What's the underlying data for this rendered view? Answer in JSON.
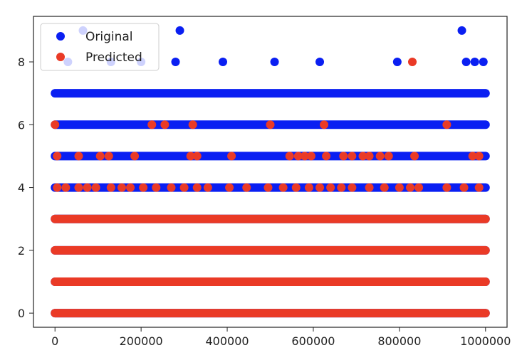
{
  "chart_data": {
    "type": "scatter",
    "title": "",
    "xlabel": "",
    "ylabel": "",
    "xlim": [
      -50000,
      1050000
    ],
    "ylim": [
      -0.45,
      9.45
    ],
    "x_ticks": [
      0,
      200000,
      400000,
      600000,
      800000,
      1000000
    ],
    "x_tick_labels": [
      "0",
      "200000",
      "400000",
      "600000",
      "800000",
      "1000000"
    ],
    "y_ticks": [
      0,
      2,
      4,
      6,
      8
    ],
    "y_tick_labels": [
      "0",
      "2",
      "4",
      "6",
      "8"
    ],
    "grid": false,
    "legend_position": "upper-left",
    "series": [
      {
        "name": "Original",
        "color": "#0a1ff2",
        "dense_bands": [
          {
            "y": 0,
            "x_range": [
              0,
              1000000
            ]
          },
          {
            "y": 1,
            "x_range": [
              0,
              1000000
            ]
          },
          {
            "y": 2,
            "x_range": [
              0,
              1000000
            ]
          },
          {
            "y": 3,
            "x_range": [
              0,
              1000000
            ]
          },
          {
            "y": 4,
            "x_range": [
              0,
              1000000
            ]
          },
          {
            "y": 5,
            "x_range": [
              0,
              1000000
            ]
          },
          {
            "y": 6,
            "x_range": [
              0,
              1000000
            ]
          },
          {
            "y": 7,
            "x_range": [
              0,
              1000000
            ]
          }
        ],
        "points": [
          {
            "x": 30000,
            "y": 8
          },
          {
            "x": 130000,
            "y": 8
          },
          {
            "x": 200000,
            "y": 8
          },
          {
            "x": 280000,
            "y": 8
          },
          {
            "x": 390000,
            "y": 8
          },
          {
            "x": 510000,
            "y": 8
          },
          {
            "x": 615000,
            "y": 8
          },
          {
            "x": 795000,
            "y": 8
          },
          {
            "x": 955000,
            "y": 8
          },
          {
            "x": 975000,
            "y": 8
          },
          {
            "x": 995000,
            "y": 8
          },
          {
            "x": 65000,
            "y": 9
          },
          {
            "x": 290000,
            "y": 9
          },
          {
            "x": 945000,
            "y": 9
          }
        ]
      },
      {
        "name": "Predicted",
        "color": "#ea3a26",
        "dense_bands": [
          {
            "y": 0,
            "x_range": [
              0,
              1000000
            ]
          },
          {
            "y": 1,
            "x_range": [
              0,
              1000000
            ]
          },
          {
            "y": 2,
            "x_range": [
              0,
              1000000
            ]
          },
          {
            "y": 3,
            "x_range": [
              0,
              1000000
            ]
          }
        ],
        "points": [
          {
            "x": 0,
            "y": 6
          },
          {
            "x": 225000,
            "y": 6
          },
          {
            "x": 255000,
            "y": 6
          },
          {
            "x": 320000,
            "y": 6
          },
          {
            "x": 500000,
            "y": 6
          },
          {
            "x": 625000,
            "y": 6
          },
          {
            "x": 910000,
            "y": 6
          },
          {
            "x": 5000,
            "y": 5
          },
          {
            "x": 55000,
            "y": 5
          },
          {
            "x": 105000,
            "y": 5
          },
          {
            "x": 125000,
            "y": 5
          },
          {
            "x": 185000,
            "y": 5
          },
          {
            "x": 315000,
            "y": 5
          },
          {
            "x": 330000,
            "y": 5
          },
          {
            "x": 410000,
            "y": 5
          },
          {
            "x": 545000,
            "y": 5
          },
          {
            "x": 565000,
            "y": 5
          },
          {
            "x": 580000,
            "y": 5
          },
          {
            "x": 595000,
            "y": 5
          },
          {
            "x": 630000,
            "y": 5
          },
          {
            "x": 670000,
            "y": 5
          },
          {
            "x": 690000,
            "y": 5
          },
          {
            "x": 715000,
            "y": 5
          },
          {
            "x": 730000,
            "y": 5
          },
          {
            "x": 755000,
            "y": 5
          },
          {
            "x": 775000,
            "y": 5
          },
          {
            "x": 835000,
            "y": 5
          },
          {
            "x": 970000,
            "y": 5
          },
          {
            "x": 985000,
            "y": 5
          },
          {
            "x": 5000,
            "y": 4
          },
          {
            "x": 25000,
            "y": 4
          },
          {
            "x": 55000,
            "y": 4
          },
          {
            "x": 75000,
            "y": 4
          },
          {
            "x": 95000,
            "y": 4
          },
          {
            "x": 130000,
            "y": 4
          },
          {
            "x": 155000,
            "y": 4
          },
          {
            "x": 175000,
            "y": 4
          },
          {
            "x": 205000,
            "y": 4
          },
          {
            "x": 235000,
            "y": 4
          },
          {
            "x": 270000,
            "y": 4
          },
          {
            "x": 300000,
            "y": 4
          },
          {
            "x": 330000,
            "y": 4
          },
          {
            "x": 355000,
            "y": 4
          },
          {
            "x": 405000,
            "y": 4
          },
          {
            "x": 445000,
            "y": 4
          },
          {
            "x": 495000,
            "y": 4
          },
          {
            "x": 530000,
            "y": 4
          },
          {
            "x": 560000,
            "y": 4
          },
          {
            "x": 590000,
            "y": 4
          },
          {
            "x": 615000,
            "y": 4
          },
          {
            "x": 640000,
            "y": 4
          },
          {
            "x": 665000,
            "y": 4
          },
          {
            "x": 690000,
            "y": 4
          },
          {
            "x": 730000,
            "y": 4
          },
          {
            "x": 765000,
            "y": 4
          },
          {
            "x": 800000,
            "y": 4
          },
          {
            "x": 825000,
            "y": 4
          },
          {
            "x": 845000,
            "y": 4
          },
          {
            "x": 910000,
            "y": 4
          },
          {
            "x": 950000,
            "y": 4
          },
          {
            "x": 985000,
            "y": 4
          },
          {
            "x": 830000,
            "y": 8
          }
        ]
      }
    ]
  }
}
